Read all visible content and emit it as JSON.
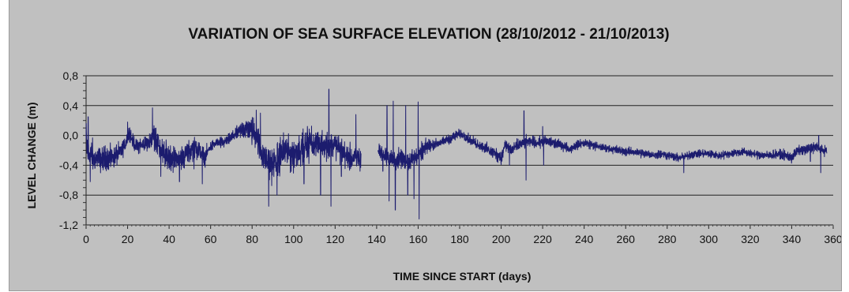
{
  "chart_data": {
    "type": "line",
    "title": "VARIATION OF SEA SURFACE ELEVATION (28/10/2012 - 21/10/2013)",
    "xlabel": "TIME SINCE START (days)",
    "ylabel": "LEVEL CHANGE (m)",
    "xlim": [
      0,
      360
    ],
    "ylim": [
      -1.2,
      0.8
    ],
    "x_ticks": [
      "0",
      "20",
      "40",
      "60",
      "80",
      "100",
      "120",
      "140",
      "160",
      "180",
      "200",
      "220",
      "240",
      "260",
      "280",
      "300",
      "320",
      "340",
      "360"
    ],
    "y_ticks": [
      "0,8",
      "0,4",
      "0,0",
      "-0,4",
      "-0,8",
      "-1,2"
    ],
    "grid": true,
    "line_color": "#1c1c6e",
    "gaps": [
      [
        132.5,
        140.5
      ]
    ],
    "series": [
      {
        "baseline": [
          [
            0,
            -0.06
          ],
          [
            1,
            -0.2
          ],
          [
            3,
            -0.3
          ],
          [
            5,
            -0.3
          ],
          [
            8,
            -0.32
          ],
          [
            11,
            -0.31
          ],
          [
            14,
            -0.28
          ],
          [
            17,
            -0.2
          ],
          [
            19,
            -0.12
          ],
          [
            20,
            -0.02
          ],
          [
            21,
            0.05
          ],
          [
            22,
            -0.05
          ],
          [
            24,
            -0.15
          ],
          [
            27,
            -0.13
          ],
          [
            30,
            -0.1
          ],
          [
            32,
            -0.02
          ],
          [
            33,
            0.02
          ],
          [
            35,
            -0.15
          ],
          [
            38,
            -0.28
          ],
          [
            41,
            -0.3
          ],
          [
            44,
            -0.3
          ],
          [
            47,
            -0.28
          ],
          [
            50,
            -0.2
          ],
          [
            52,
            -0.15
          ],
          [
            55,
            -0.22
          ],
          [
            57,
            -0.3
          ],
          [
            60,
            -0.15
          ],
          [
            63,
            -0.1
          ],
          [
            66,
            -0.1
          ],
          [
            69,
            -0.05
          ],
          [
            72,
            0.02
          ],
          [
            75,
            0.08
          ],
          [
            78,
            0.1
          ],
          [
            80,
            0.05
          ],
          [
            82,
            0.02
          ],
          [
            84,
            -0.2
          ],
          [
            87,
            -0.35
          ],
          [
            90,
            -0.38
          ],
          [
            93,
            -0.3
          ],
          [
            96,
            -0.2
          ],
          [
            99,
            -0.25
          ],
          [
            102,
            -0.2
          ],
          [
            105,
            -0.15
          ],
          [
            108,
            -0.1
          ],
          [
            111,
            -0.12
          ],
          [
            114,
            -0.1
          ],
          [
            117,
            -0.15
          ],
          [
            120,
            -0.12
          ],
          [
            123,
            -0.2
          ],
          [
            126,
            -0.3
          ],
          [
            129,
            -0.3
          ],
          [
            132.5,
            -0.3
          ],
          [
            140.5,
            -0.2
          ],
          [
            143,
            -0.25
          ],
          [
            146,
            -0.3
          ],
          [
            149,
            -0.35
          ],
          [
            152,
            -0.3
          ],
          [
            155,
            -0.35
          ],
          [
            158,
            -0.3
          ],
          [
            161,
            -0.25
          ],
          [
            164,
            -0.15
          ],
          [
            168,
            -0.12
          ],
          [
            172,
            -0.08
          ],
          [
            176,
            -0.04
          ],
          [
            179,
            0.02
          ],
          [
            182,
            0.0
          ],
          [
            186,
            -0.08
          ],
          [
            190,
            -0.13
          ],
          [
            194,
            -0.2
          ],
          [
            198,
            -0.25
          ],
          [
            200,
            -0.3
          ],
          [
            202,
            -0.12
          ],
          [
            205,
            -0.2
          ],
          [
            209,
            -0.12
          ],
          [
            213,
            -0.08
          ],
          [
            217,
            -0.1
          ],
          [
            221,
            -0.08
          ],
          [
            225,
            -0.1
          ],
          [
            229,
            -0.13
          ],
          [
            233,
            -0.18
          ],
          [
            237,
            -0.12
          ],
          [
            241,
            -0.1
          ],
          [
            245,
            -0.14
          ],
          [
            249,
            -0.16
          ],
          [
            253,
            -0.18
          ],
          [
            257,
            -0.2
          ],
          [
            261,
            -0.22
          ],
          [
            265,
            -0.22
          ],
          [
            269,
            -0.25
          ],
          [
            273,
            -0.26
          ],
          [
            277,
            -0.25
          ],
          [
            281,
            -0.27
          ],
          [
            285,
            -0.3
          ],
          [
            289,
            -0.28
          ],
          [
            293,
            -0.25
          ],
          [
            297,
            -0.24
          ],
          [
            301,
            -0.25
          ],
          [
            305,
            -0.27
          ],
          [
            309,
            -0.25
          ],
          [
            313,
            -0.23
          ],
          [
            317,
            -0.22
          ],
          [
            321,
            -0.25
          ],
          [
            325,
            -0.26
          ],
          [
            329,
            -0.27
          ],
          [
            333,
            -0.25
          ],
          [
            337,
            -0.27
          ],
          [
            340,
            -0.3
          ],
          [
            343,
            -0.2
          ],
          [
            347,
            -0.2
          ],
          [
            351,
            -0.15
          ],
          [
            355,
            -0.2
          ],
          [
            357,
            -0.2
          ]
        ],
        "amplitude": [
          [
            0,
            0.22
          ],
          [
            20,
            0.08
          ],
          [
            30,
            0.1
          ],
          [
            34,
            0.18
          ],
          [
            45,
            0.15
          ],
          [
            55,
            0.12
          ],
          [
            62,
            0.06
          ],
          [
            72,
            0.07
          ],
          [
            80,
            0.16
          ],
          [
            90,
            0.22
          ],
          [
            100,
            0.2
          ],
          [
            110,
            0.2
          ],
          [
            120,
            0.17
          ],
          [
            132,
            0.15
          ],
          [
            141,
            0.1
          ],
          [
            150,
            0.12
          ],
          [
            160,
            0.12
          ],
          [
            170,
            0.05
          ],
          [
            190,
            0.06
          ],
          [
            200,
            0.08
          ],
          [
            215,
            0.07
          ],
          [
            240,
            0.05
          ],
          [
            280,
            0.05
          ],
          [
            320,
            0.05
          ],
          [
            340,
            0.06
          ],
          [
            357,
            0.07
          ]
        ],
        "spikes": [
          [
            1,
            0.25
          ],
          [
            2,
            -0.62
          ],
          [
            12,
            -0.38
          ],
          [
            20,
            0.18
          ],
          [
            32,
            0.37
          ],
          [
            36,
            -0.55
          ],
          [
            45,
            -0.62
          ],
          [
            52,
            -0.45
          ],
          [
            56,
            -0.65
          ],
          [
            82,
            0.34
          ],
          [
            84,
            0.3
          ],
          [
            88,
            -0.95
          ],
          [
            92,
            -0.8
          ],
          [
            105,
            -0.65
          ],
          [
            113,
            -0.8
          ],
          [
            117,
            0.62
          ],
          [
            118,
            -0.95
          ],
          [
            123,
            -0.55
          ],
          [
            130,
            0.28
          ],
          [
            132,
            -0.48
          ],
          [
            143,
            -0.48
          ],
          [
            145,
            0.4
          ],
          [
            146,
            -0.88
          ],
          [
            147,
            -0.2
          ],
          [
            148,
            0.46
          ],
          [
            149,
            -1.0
          ],
          [
            154,
            0.4
          ],
          [
            155,
            -0.8
          ],
          [
            158,
            -0.85
          ],
          [
            160,
            0.45
          ],
          [
            160.5,
            -1.12
          ],
          [
            198,
            -0.35
          ],
          [
            204,
            -0.4
          ],
          [
            211,
            0.33
          ],
          [
            212,
            -0.6
          ],
          [
            220,
            0.12
          ],
          [
            220.5,
            -0.4
          ],
          [
            288,
            -0.5
          ],
          [
            349,
            -0.35
          ],
          [
            353,
            0.0
          ],
          [
            354,
            -0.5
          ]
        ]
      }
    ]
  }
}
